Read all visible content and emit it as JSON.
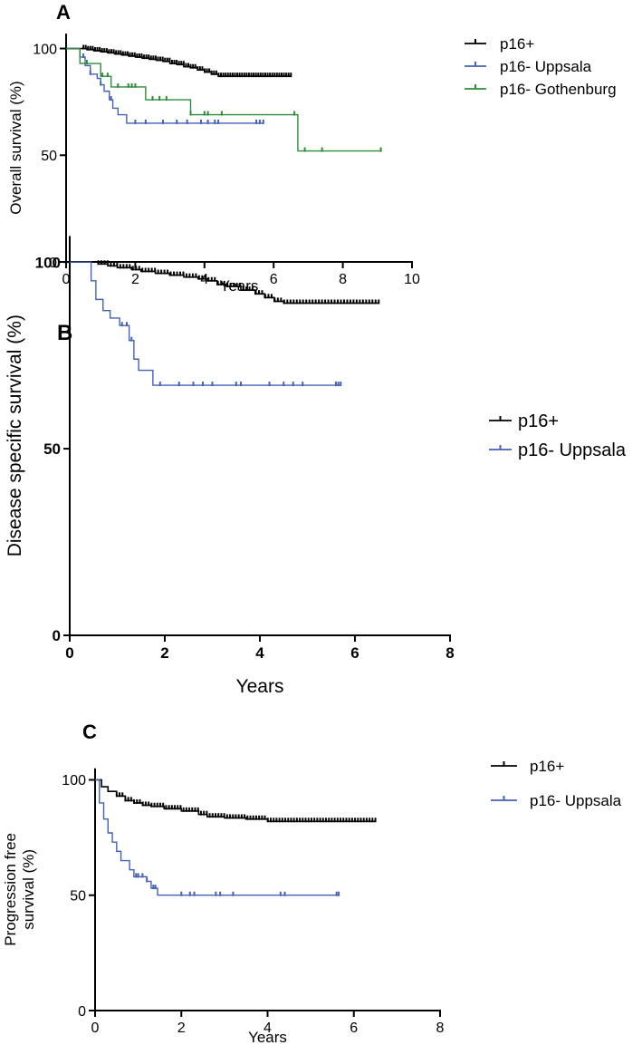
{
  "chart_data": [
    {
      "type": "line",
      "subtype": "kaplan-meier",
      "panel_label": "A",
      "xlabel": "Years",
      "ylabel": "Overall survival (%)",
      "xlim": [
        0,
        10
      ],
      "ylim": [
        0,
        110
      ],
      "xticks": [
        0,
        2,
        4,
        6,
        8,
        10
      ],
      "yticks": [
        0,
        50,
        100
      ],
      "legend_position": "right",
      "series": [
        {
          "name": "p16+",
          "color": "#000000",
          "steps": [
            [
              0,
              100
            ],
            [
              0.6,
              99.5
            ],
            [
              0.8,
              99
            ],
            [
              1.0,
              98.5
            ],
            [
              1.2,
              98
            ],
            [
              1.4,
              97.5
            ],
            [
              1.6,
              97
            ],
            [
              1.8,
              96.5
            ],
            [
              2.0,
              96
            ],
            [
              2.2,
              95.5
            ],
            [
              2.4,
              95
            ],
            [
              2.6,
              94.5
            ],
            [
              2.8,
              94
            ],
            [
              3.0,
              93
            ],
            [
              3.2,
              92.5
            ],
            [
              3.4,
              91.5
            ],
            [
              3.6,
              91
            ],
            [
              3.8,
              90
            ],
            [
              4.0,
              89
            ],
            [
              4.2,
              88
            ],
            [
              4.4,
              87
            ],
            [
              6.5,
              87
            ]
          ],
          "censor_start": 0.5,
          "censor_end": 6.5,
          "censor_count": 90
        },
        {
          "name": "p16- Uppsala",
          "color": "#4461b4",
          "steps": [
            [
              0,
              100
            ],
            [
              0.4,
              96
            ],
            [
              0.55,
              92
            ],
            [
              0.7,
              88
            ],
            [
              0.9,
              86
            ],
            [
              1.0,
              83
            ],
            [
              1.1,
              80
            ],
            [
              1.25,
              76
            ],
            [
              1.35,
              72
            ],
            [
              1.5,
              69
            ],
            [
              1.75,
              65
            ],
            [
              5.7,
              65
            ]
          ],
          "censors": [
            0.5,
            0.7,
            1.0,
            1.3,
            2.0,
            2.3,
            2.8,
            3.2,
            3.5,
            3.9,
            4.1,
            4.3,
            4.4,
            5.5,
            5.6,
            5.7
          ]
        },
        {
          "name": "p16- Gothenburg",
          "color": "#2e8b3a",
          "steps": [
            [
              0,
              100
            ],
            [
              0.4,
              93
            ],
            [
              1.0,
              87
            ],
            [
              1.3,
              82
            ],
            [
              2.3,
              76
            ],
            [
              3.6,
              69
            ],
            [
              6.7,
              52
            ],
            [
              9.1,
              52
            ]
          ],
          "censors": [
            0.6,
            1.05,
            1.2,
            1.5,
            1.8,
            1.9,
            2.0,
            2.5,
            2.7,
            2.9,
            3.6,
            4.0,
            4.1,
            4.5,
            6.6,
            6.9,
            7.4,
            9.1
          ]
        }
      ]
    },
    {
      "type": "line",
      "subtype": "kaplan-meier",
      "panel_label": "B",
      "xlabel": "Years",
      "ylabel": "Disease specific survival  (%)",
      "xlim": [
        0,
        8
      ],
      "ylim": [
        0,
        110
      ],
      "xticks": [
        0,
        2,
        4,
        6,
        8
      ],
      "yticks": [
        0,
        50,
        100
      ],
      "legend_position": "right",
      "series": [
        {
          "name": "p16+",
          "color": "#000000",
          "steps": [
            [
              0,
              100
            ],
            [
              0.6,
              99.5
            ],
            [
              0.8,
              99
            ],
            [
              1.0,
              98.5
            ],
            [
              1.3,
              98
            ],
            [
              1.5,
              97.5
            ],
            [
              1.8,
              97
            ],
            [
              2.1,
              96.5
            ],
            [
              2.4,
              96
            ],
            [
              2.7,
              95.5
            ],
            [
              2.9,
              95
            ],
            [
              3.1,
              94
            ],
            [
              3.3,
              93.5
            ],
            [
              3.6,
              92.5
            ],
            [
              3.9,
              91.5
            ],
            [
              4.1,
              90.5
            ],
            [
              4.3,
              89.5
            ],
            [
              4.5,
              89
            ],
            [
              6.5,
              89
            ]
          ],
          "censor_start": 0.6,
          "censor_end": 6.5,
          "censor_count": 90
        },
        {
          "name": "p16- Uppsala",
          "color": "#4461b4",
          "steps": [
            [
              0,
              100
            ],
            [
              0.45,
              95
            ],
            [
              0.55,
              90
            ],
            [
              0.7,
              87
            ],
            [
              0.85,
              85
            ],
            [
              1.05,
              83
            ],
            [
              1.25,
              79
            ],
            [
              1.35,
              74
            ],
            [
              1.45,
              71
            ],
            [
              1.75,
              67
            ],
            [
              5.7,
              67
            ]
          ],
          "censors": [
            1.1,
            1.2,
            1.3,
            1.9,
            2.3,
            2.6,
            2.8,
            3.0,
            3.5,
            3.6,
            4.2,
            4.5,
            4.7,
            4.9,
            5.6,
            5.65,
            5.7
          ]
        }
      ]
    },
    {
      "type": "line",
      "subtype": "kaplan-meier",
      "panel_label": "C",
      "xlabel": "Years",
      "ylabel_lines": [
        "Progression free",
        "survival (%)"
      ],
      "xlim": [
        0,
        8
      ],
      "ylim": [
        0,
        110
      ],
      "xticks": [
        0,
        2,
        4,
        6,
        8
      ],
      "yticks": [
        0,
        50,
        100
      ],
      "legend_position": "right",
      "series": [
        {
          "name": "p16+",
          "color": "#000000",
          "steps": [
            [
              0,
              100
            ],
            [
              0.15,
              97
            ],
            [
              0.3,
              95
            ],
            [
              0.5,
              93
            ],
            [
              0.7,
              91
            ],
            [
              0.9,
              90
            ],
            [
              1.1,
              89
            ],
            [
              1.3,
              88.5
            ],
            [
              1.6,
              87.5
            ],
            [
              2.0,
              86.5
            ],
            [
              2.4,
              85
            ],
            [
              2.6,
              84
            ],
            [
              3.0,
              83.5
            ],
            [
              3.5,
              83
            ],
            [
              4.0,
              82
            ],
            [
              6.5,
              82
            ]
          ],
          "censor_start": 0.5,
          "censor_end": 6.5,
          "censor_count": 90
        },
        {
          "name": "p16- Uppsala",
          "color": "#4461b4",
          "steps": [
            [
              0,
              100
            ],
            [
              0.1,
              90
            ],
            [
              0.2,
              83
            ],
            [
              0.3,
              77
            ],
            [
              0.4,
              73
            ],
            [
              0.5,
              69
            ],
            [
              0.6,
              65
            ],
            [
              0.8,
              61
            ],
            [
              0.9,
              58
            ],
            [
              1.2,
              56
            ],
            [
              1.3,
              53
            ],
            [
              1.45,
              50
            ],
            [
              5.65,
              50
            ]
          ],
          "censors": [
            0.95,
            1.0,
            1.1,
            1.2,
            1.35,
            1.4,
            2.0,
            2.2,
            2.3,
            2.8,
            2.9,
            3.2,
            4.3,
            4.4,
            5.6,
            5.65
          ]
        }
      ]
    }
  ]
}
